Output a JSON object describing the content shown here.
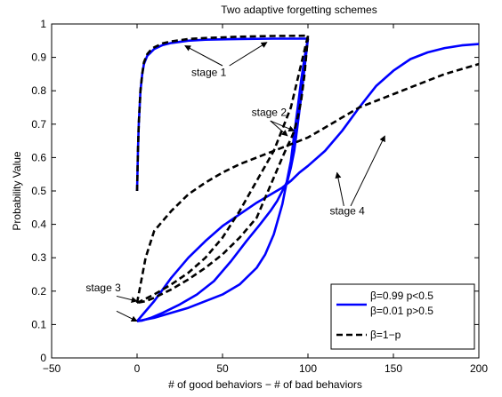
{
  "chart_data": {
    "type": "line",
    "title": "Two adaptive forgetting schemes",
    "xlabel": "# of good behaviors − # of bad behaviors",
    "ylabel": "Probability Value",
    "xlim": [
      -50,
      200
    ],
    "ylim": [
      0,
      1
    ],
    "xticks": [
      -50,
      0,
      50,
      100,
      150,
      200
    ],
    "yticks": [
      0,
      0.1,
      0.2,
      0.3,
      0.4,
      0.5,
      0.6,
      0.7,
      0.8,
      0.9,
      1
    ],
    "grid": false,
    "legend_position": "bottom-right",
    "legend": [
      {
        "lines": [
          "β=0.99 p<0.5",
          "β=0.01 p>0.5"
        ],
        "color": "#0000ff",
        "dash": "solid"
      },
      {
        "lines": [
          "β=1−p"
        ],
        "color": "#000000",
        "dash": "dashed"
      }
    ],
    "series": [
      {
        "color": "#0000ff",
        "dash": "solid",
        "segments": [
          {
            "x": [
              0,
              0.5,
              1,
              2,
              3,
              4,
              6,
              8,
              10,
              15,
              20,
              30,
              40,
              60,
              80,
              100
            ],
            "y": [
              0.5,
              0.62,
              0.7,
              0.8,
              0.85,
              0.88,
              0.905,
              0.915,
              0.925,
              0.937,
              0.943,
              0.95,
              0.953,
              0.955,
              0.956,
              0.956
            ]
          },
          {
            "x": [
              100,
              98,
              96,
              94,
              92,
              90,
              88,
              85,
              82,
              78,
              72,
              64,
              55,
              45,
              35,
              25,
              15,
              8,
              3,
              0
            ],
            "y": [
              0.956,
              0.87,
              0.78,
              0.7,
              0.62,
              0.57,
              0.53,
              0.5,
              0.47,
              0.44,
              0.4,
              0.35,
              0.29,
              0.23,
              0.19,
              0.16,
              0.135,
              0.12,
              0.112,
              0.11
            ]
          },
          {
            "x": [
              0,
              10,
              20,
              30,
              40,
              50,
              60,
              70,
              80,
              85,
              90,
              95,
              100,
              110,
              120,
              130,
              140,
              150,
              160,
              170,
              180,
              190,
              200
            ],
            "y": [
              0.11,
              0.17,
              0.24,
              0.3,
              0.35,
              0.395,
              0.43,
              0.465,
              0.495,
              0.51,
              0.53,
              0.555,
              0.575,
              0.62,
              0.68,
              0.75,
              0.815,
              0.86,
              0.895,
              0.915,
              0.928,
              0.936,
              0.94
            ]
          },
          {
            "x": [
              0,
              10,
              20,
              30,
              40,
              50,
              60,
              70,
              75,
              80,
              85,
              90,
              92,
              94,
              96,
              98,
              100
            ],
            "y": [
              0.11,
              0.12,
              0.135,
              0.15,
              0.17,
              0.19,
              0.22,
              0.27,
              0.31,
              0.37,
              0.46,
              0.59,
              0.67,
              0.75,
              0.83,
              0.9,
              0.956
            ]
          }
        ]
      },
      {
        "color": "#000000",
        "dash": "dashed",
        "segments": [
          {
            "x": [
              0,
              0.5,
              1,
              2,
              3,
              4,
              6,
              8,
              10,
              15,
              20,
              30,
              40,
              60,
              80,
              100
            ],
            "y": [
              0.5,
              0.62,
              0.7,
              0.8,
              0.85,
              0.885,
              0.91,
              0.922,
              0.93,
              0.942,
              0.948,
              0.955,
              0.958,
              0.962,
              0.964,
              0.965
            ]
          },
          {
            "x": [
              100,
              98,
              96,
              94,
              92,
              90,
              88,
              85,
              80,
              75,
              70,
              60,
              50,
              40,
              30,
              20,
              10,
              5,
              0
            ],
            "y": [
              0.965,
              0.85,
              0.77,
              0.72,
              0.68,
              0.655,
              0.635,
              0.6,
              0.54,
              0.48,
              0.42,
              0.36,
              0.31,
              0.27,
              0.235,
              0.205,
              0.18,
              0.17,
              0.165
            ]
          },
          {
            "x": [
              0,
              5,
              10,
              20,
              30,
              40,
              50,
              60,
              70,
              80,
              90,
              100,
              110,
              120,
              130,
              140,
              150,
              160,
              170,
              180,
              190,
              200
            ],
            "y": [
              0.165,
              0.3,
              0.38,
              0.44,
              0.49,
              0.525,
              0.555,
              0.58,
              0.6,
              0.62,
              0.64,
              0.66,
              0.69,
              0.72,
              0.75,
              0.77,
              0.79,
              0.81,
              0.83,
              0.85,
              0.865,
              0.88
            ]
          },
          {
            "x": [
              0,
              10,
              20,
              30,
              40,
              50,
              60,
              70,
              80,
              90,
              100
            ],
            "y": [
              0.165,
              0.19,
              0.22,
              0.255,
              0.3,
              0.36,
              0.44,
              0.53,
              0.62,
              0.75,
              0.965
            ]
          }
        ]
      }
    ],
    "annotations": [
      {
        "text": "stage 1",
        "at": [
          42,
          0.845
        ],
        "anchor": "middle",
        "arrows": [
          {
            "from": [
              54,
              0.875
            ],
            "to": [
              76,
              0.945
            ]
          },
          {
            "from": [
              50,
              0.875
            ],
            "to": [
              28,
              0.935
            ]
          }
        ]
      },
      {
        "text": "stage 2",
        "at": [
          67,
          0.725
        ],
        "anchor": "start",
        "arrows": [
          {
            "from": [
              78,
              0.71
            ],
            "to": [
              92,
              0.68
            ]
          },
          {
            "from": [
              78,
              0.71
            ],
            "to": [
              88,
              0.665
            ]
          }
        ]
      },
      {
        "text": "stage 3",
        "at": [
          -30,
          0.2
        ],
        "anchor": "start",
        "arrows": [
          {
            "from": [
              -12,
              0.185
            ],
            "to": [
              0,
              0.17
            ]
          },
          {
            "from": [
              -12,
              0.14
            ],
            "to": [
              0,
              0.11
            ]
          }
        ]
      },
      {
        "text": "stage 4",
        "at": [
          123,
          0.43
        ],
        "anchor": "middle",
        "arrows": [
          {
            "from": [
              121,
              0.455
            ],
            "to": [
              117,
              0.555
            ]
          },
          {
            "from": [
              125,
              0.455
            ],
            "to": [
              145,
              0.665
            ]
          }
        ]
      }
    ]
  }
}
